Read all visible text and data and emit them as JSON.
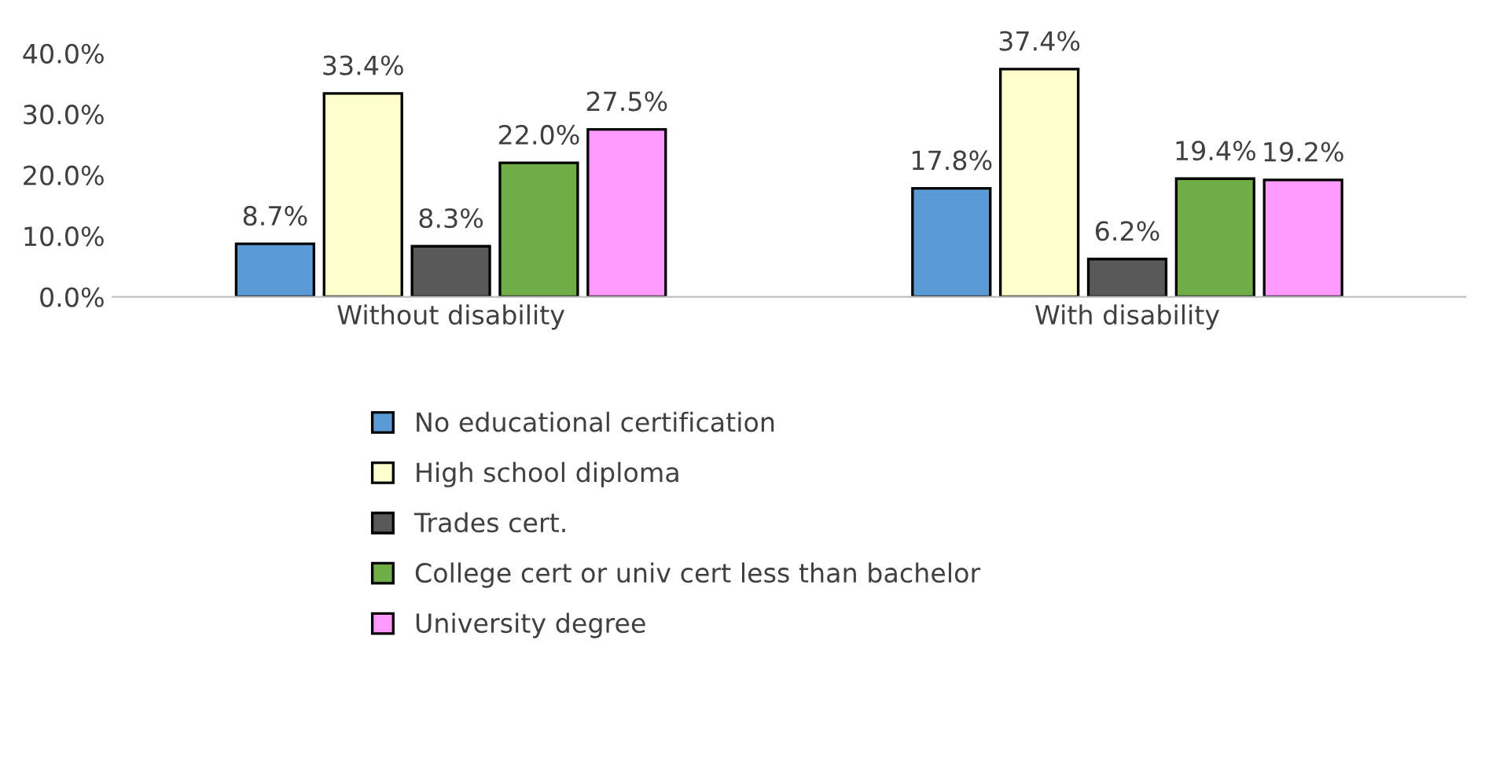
{
  "chart_data": {
    "type": "bar",
    "categories": [
      "Without disability",
      "With disability"
    ],
    "series": [
      {
        "name": "No educational certification",
        "color": "#5b9bd5",
        "values": [
          8.7,
          17.8
        ],
        "value_labels": [
          "8.7%",
          "17.8%"
        ]
      },
      {
        "name": "High school diploma",
        "color": "#ffffcc",
        "values": [
          33.4,
          37.4
        ],
        "value_labels": [
          "33.4%",
          "37.4%"
        ]
      },
      {
        "name": "Trades cert.",
        "color": "#595959",
        "values": [
          8.3,
          6.2
        ],
        "value_labels": [
          "8.3%",
          "6.2%"
        ]
      },
      {
        "name": "College cert or univ cert less than bachelor",
        "color": "#70ad47",
        "values": [
          22.0,
          19.4
        ],
        "value_labels": [
          "22.0%",
          "19.4%"
        ]
      },
      {
        "name": "University degree",
        "color": "#ff99ff",
        "values": [
          27.5,
          19.2
        ],
        "value_labels": [
          "27.5%",
          "19.2%"
        ]
      }
    ],
    "ylim": [
      0,
      40
    ],
    "yticks": [
      {
        "value": 0,
        "label": "0.0%"
      },
      {
        "value": 10,
        "label": "10.0%"
      },
      {
        "value": 20,
        "label": "20.0%"
      },
      {
        "value": 30,
        "label": "30.0%"
      },
      {
        "value": 40,
        "label": "40.0%"
      }
    ],
    "grid": false,
    "legend": "bottom"
  }
}
